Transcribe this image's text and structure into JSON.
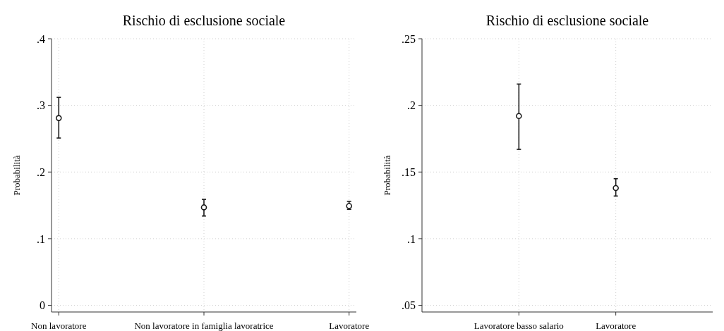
{
  "chart_data": [
    {
      "type": "scatter",
      "title": "Rischio di esclusione sociale",
      "ylabel": "Probabilità",
      "categories": [
        "Non lavoratore",
        "Non lavoratore in famiglia lavoratrice",
        "Lavoratore"
      ],
      "series": [
        {
          "color": "#1a1a1a",
          "values": [
            0.281,
            0.147,
            0.149
          ],
          "errors": [
            [
              0.251,
              0.312
            ],
            [
              0.134,
              0.159
            ],
            [
              0.144,
              0.156
            ]
          ]
        }
      ],
      "ylim": [
        -0.01,
        0.4
      ],
      "yticks": [
        {
          "value": 0,
          "label": "0"
        },
        {
          "value": 0.1,
          "label": ".1"
        },
        {
          "value": 0.2,
          "label": ".2"
        },
        {
          "value": 0.3,
          "label": ".3"
        },
        {
          "value": 0.4,
          "label": ".4"
        }
      ],
      "grid": true,
      "marker": "circle"
    },
    {
      "type": "scatter",
      "title": "Rischio di esclusione sociale",
      "ylabel": "Probabilità",
      "categories": [
        "Lavoratore basso salario",
        "Lavoratore"
      ],
      "series": [
        {
          "color": "#1a1a1a",
          "values": [
            0.192,
            0.138
          ],
          "errors": [
            [
              0.167,
              0.216
            ],
            [
              0.132,
              0.145
            ]
          ]
        }
      ],
      "ylim": [
        0.045,
        0.25
      ],
      "yticks": [
        {
          "value": 0.05,
          "label": ".05"
        },
        {
          "value": 0.1,
          "label": ".1"
        },
        {
          "value": 0.15,
          "label": ".15"
        },
        {
          "value": 0.2,
          "label": ".2"
        },
        {
          "value": 0.25,
          "label": ".25"
        }
      ],
      "grid": true,
      "marker": "circle"
    }
  ]
}
